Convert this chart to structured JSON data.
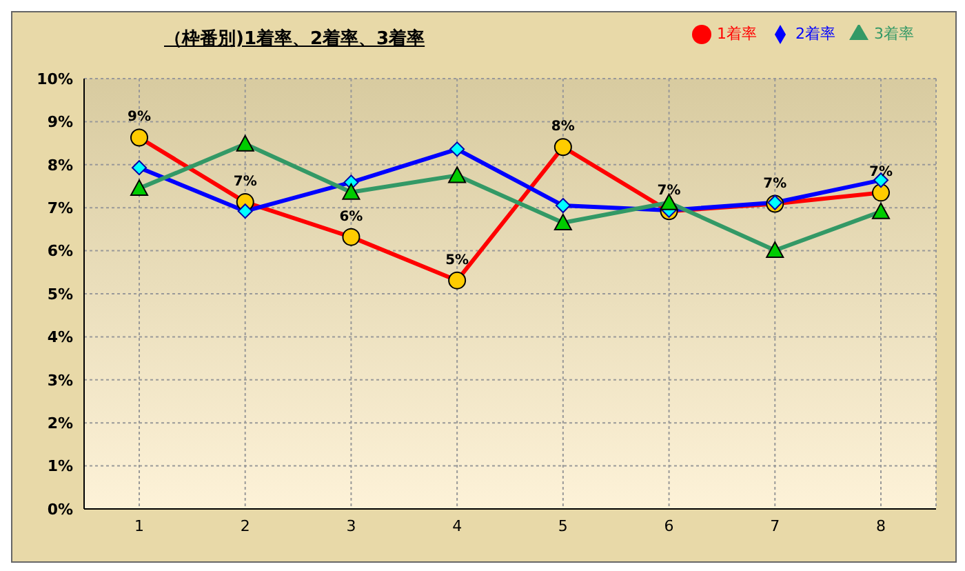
{
  "chart_data": {
    "type": "line",
    "title": "（枠番別)1着率、2着率、3着率",
    "categories": [
      "1",
      "2",
      "3",
      "4",
      "5",
      "6",
      "7",
      "8"
    ],
    "series": [
      {
        "name": "3着率",
        "color": "#339966",
        "marker": "triangle",
        "values": [
          7.45,
          8.48,
          7.36,
          7.75,
          6.65,
          7.12,
          6.01,
          6.91
        ]
      },
      {
        "name": "2着率",
        "color": "#0000ff",
        "marker": "diamond",
        "values": [
          7.93,
          6.92,
          7.59,
          8.36,
          7.05,
          6.94,
          7.12,
          7.64
        ]
      },
      {
        "name": "1着率",
        "color": "#ff0000",
        "marker": "circle",
        "values": [
          8.63,
          7.13,
          6.32,
          5.31,
          8.41,
          6.92,
          7.09,
          7.35
        ],
        "value_labels": [
          "9%",
          "7%",
          "6%",
          "5%",
          "8%",
          "7%",
          "7%",
          "7%"
        ]
      }
    ],
    "ylim": [
      0,
      10
    ],
    "yticks": [
      {
        "value": 0,
        "label": "0%"
      },
      {
        "value": 1,
        "label": "1%"
      },
      {
        "value": 2,
        "label": "2%"
      },
      {
        "value": 3,
        "label": "3%"
      },
      {
        "value": 4,
        "label": "4%"
      },
      {
        "value": 5,
        "label": "5%"
      },
      {
        "value": 6,
        "label": "6%"
      },
      {
        "value": 7,
        "label": "7%"
      },
      {
        "value": 8,
        "label": "8%"
      },
      {
        "value": 9,
        "label": "9%"
      },
      {
        "value": 10,
        "label": "10%"
      }
    ],
    "grid": true,
    "legend": "top right",
    "line_style": "solid"
  }
}
